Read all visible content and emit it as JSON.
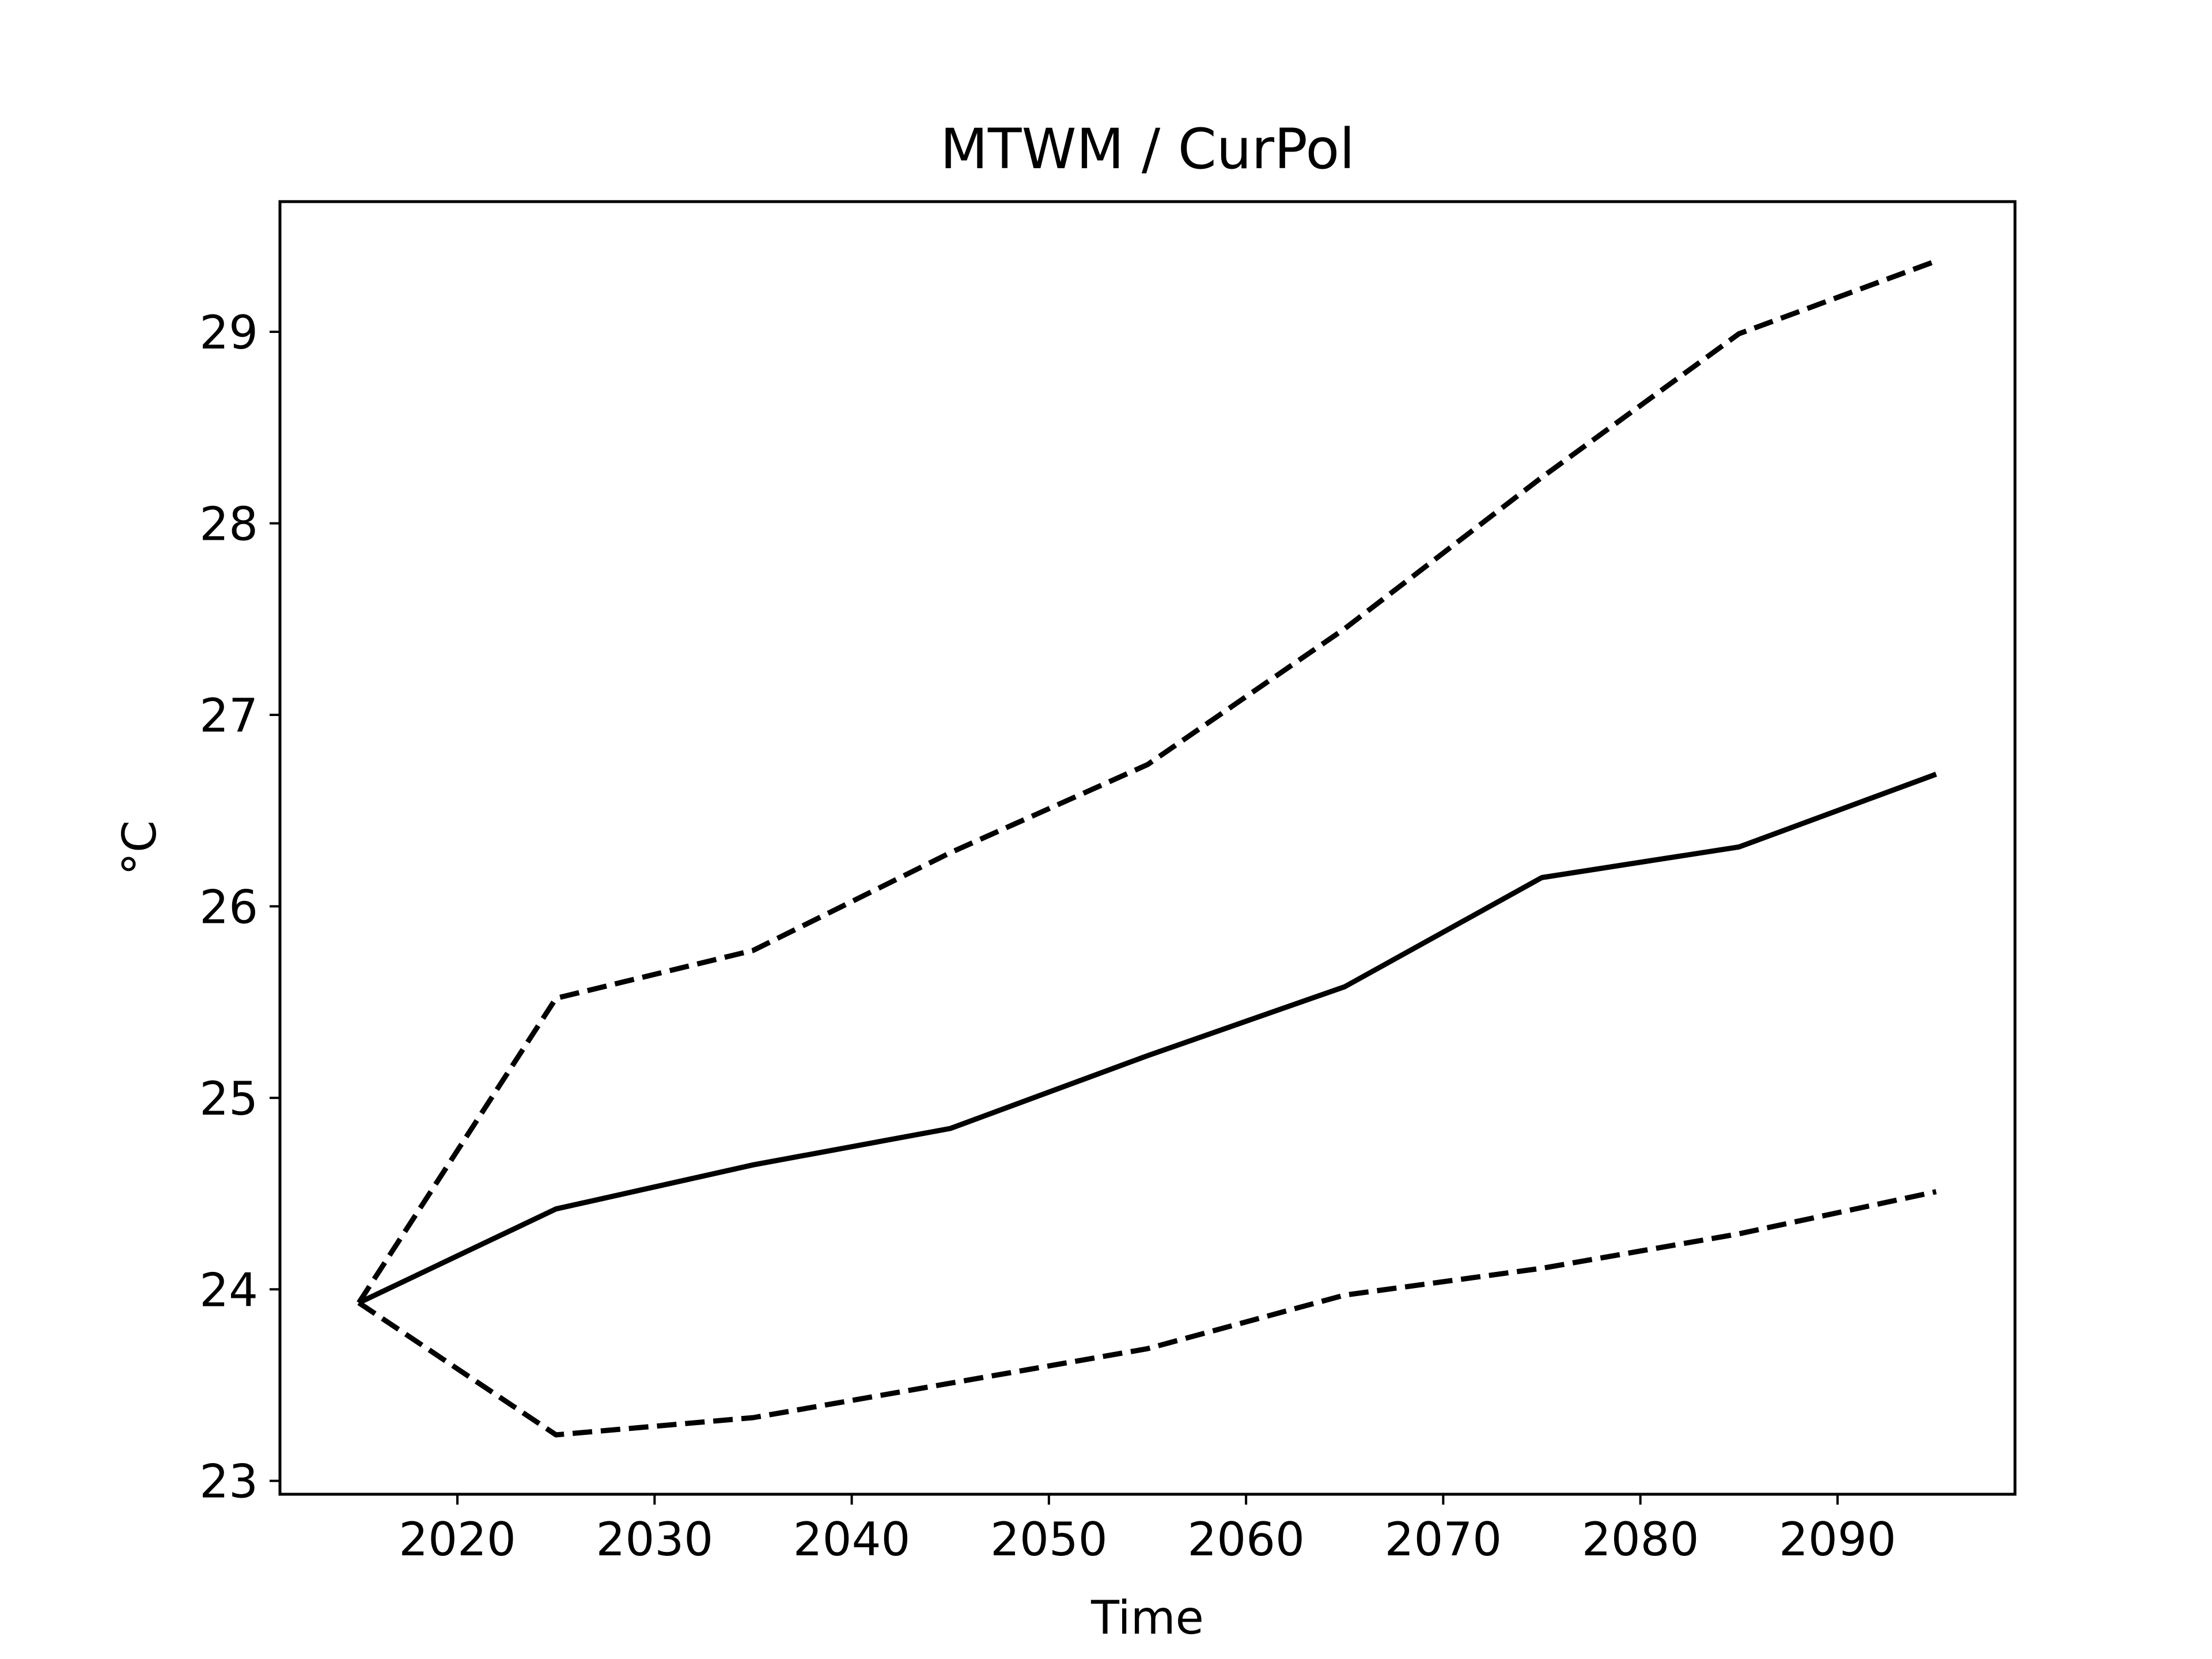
{
  "chart_data": {
    "type": "line",
    "title": "MTWM / CurPol",
    "xlabel": "Time",
    "ylabel": "°C",
    "x": [
      2015,
      2025,
      2035,
      2045,
      2055,
      2065,
      2075,
      2085,
      2095
    ],
    "series": [
      {
        "style": "solid",
        "color": "#000000",
        "values": [
          23.93,
          24.42,
          24.65,
          24.84,
          25.22,
          25.58,
          26.15,
          26.31,
          26.69
        ]
      },
      {
        "style": "dashed",
        "color": "#000000",
        "values": [
          23.93,
          25.52,
          25.77,
          26.28,
          26.74,
          27.45,
          28.24,
          28.99,
          29.37
        ]
      },
      {
        "style": "dashed",
        "color": "#000000",
        "values": [
          23.93,
          23.24,
          23.33,
          23.51,
          23.69,
          23.97,
          24.11,
          24.29,
          24.51
        ]
      }
    ],
    "xlim": [
      2011,
      2099
    ],
    "ylim": [
      22.93,
      29.68
    ],
    "xticks": [
      2020,
      2030,
      2040,
      2050,
      2060,
      2070,
      2080,
      2090
    ],
    "yticks": [
      23,
      24,
      25,
      26,
      27,
      28,
      29
    ],
    "grid": false,
    "legend": "none"
  }
}
